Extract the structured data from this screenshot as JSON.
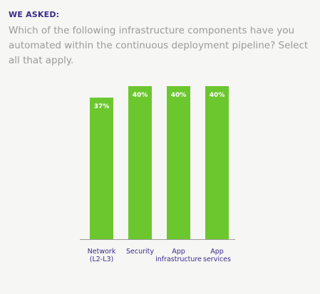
{
  "header": {
    "kicker": "WE ASKED:",
    "question": "Which of the following infrastructure components have you automated within the continuous deployment pipeline? Select all that apply."
  },
  "colors": {
    "bar": "#6cc72e",
    "label": "#3a2a8c",
    "question": "#9a9a9a",
    "axis": "#9a9a9a"
  },
  "chart_data": {
    "type": "bar",
    "categories": [
      [
        "Network",
        "(L2-L3)"
      ],
      [
        "Security"
      ],
      [
        "App",
        "infrastructure"
      ],
      [
        "App",
        "services"
      ]
    ],
    "values": [
      37,
      40,
      40,
      40
    ],
    "value_labels": [
      "37%",
      "40%",
      "40%",
      "40%"
    ],
    "title": "",
    "xlabel": "",
    "ylabel": "",
    "ylim": [
      0,
      40
    ],
    "grid": false
  }
}
